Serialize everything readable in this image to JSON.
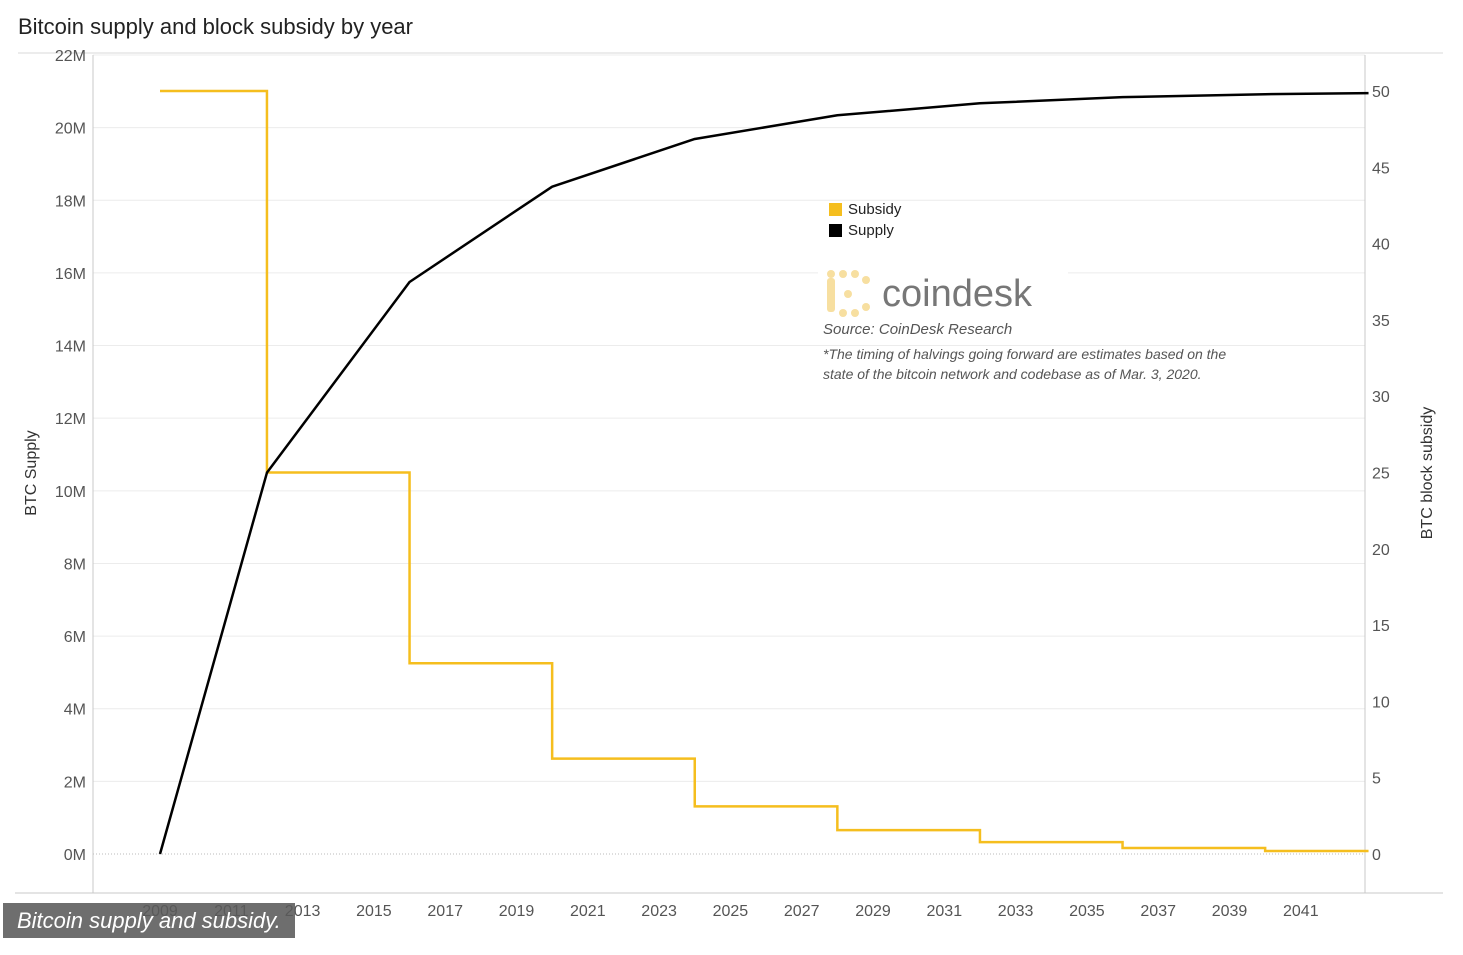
{
  "title": "Bitcoin supply and block subsidy by year",
  "caption": "Bitcoin supply and subsidy.",
  "logo_text": "coindesk",
  "source_text": "Source: CoinDesk Research",
  "note_line1": "*The timing of halvings going forward are estimates based on the",
  "note_line2": "state of the bitcoin network and codebase as of Mar. 3, 2020.",
  "colors": {
    "subsidy": "#f5be1e",
    "supply": "#000000",
    "grid": "#ececec",
    "axis": "#c8c8c8",
    "logo_icon": "#f7dfa0"
  },
  "chart_data": {
    "type": "line",
    "x_ticks": [
      "2009",
      "2011",
      "2013",
      "2015",
      "2017",
      "2019",
      "2021",
      "2023",
      "2025",
      "2027",
      "2029",
      "2031",
      "2033",
      "2035",
      "2037",
      "2039",
      "2041"
    ],
    "xlim": [
      2007.2,
      2042.9
    ],
    "y_left": {
      "label": "BTC Supply",
      "ticks": [
        "0M",
        "2M",
        "4M",
        "6M",
        "8M",
        "10M",
        "12M",
        "14M",
        "16M",
        "18M",
        "20M",
        "22M"
      ],
      "lim": [
        0,
        22
      ]
    },
    "y_right": {
      "label": "BTC block subsidy",
      "ticks": [
        "0",
        "5",
        "10",
        "15",
        "20",
        "25",
        "30",
        "35",
        "40",
        "45",
        "50"
      ],
      "lim": [
        0,
        52
      ]
    },
    "legend": {
      "position": "center",
      "entries": [
        "Subsidy",
        "Supply"
      ]
    },
    "series": [
      {
        "name": "Supply",
        "axis": "left",
        "x": [
          2009,
          2012,
          2016,
          2020,
          2024,
          2028,
          2032,
          2036,
          2040,
          2042.9
        ],
        "y": [
          0,
          10.5,
          15.75,
          18.375,
          19.6875,
          20.34,
          20.67,
          20.84,
          20.92,
          20.95
        ]
      },
      {
        "name": "Subsidy",
        "axis": "right",
        "step": true,
        "x": [
          2009,
          2012,
          2016,
          2020,
          2024,
          2028,
          2032,
          2036,
          2040,
          2042.9
        ],
        "y": [
          50,
          25,
          12.5,
          6.25,
          3.125,
          1.5625,
          0.78125,
          0.390625,
          0.1953125,
          0.1953125
        ]
      }
    ]
  }
}
